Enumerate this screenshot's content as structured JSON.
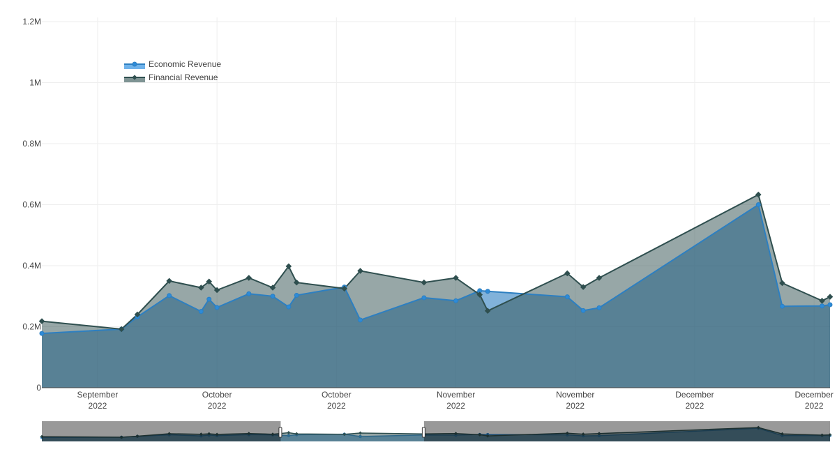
{
  "chart_data": {
    "type": "area",
    "title": "",
    "xlabel": "",
    "ylabel": "",
    "ylim": [
      0,
      1200000
    ],
    "y_ticks": [
      {
        "value": 0,
        "label": "0"
      },
      {
        "value": 200000,
        "label": "0.2M"
      },
      {
        "value": 400000,
        "label": "0.4M"
      },
      {
        "value": 600000,
        "label": "0.6M"
      },
      {
        "value": 800000,
        "label": "0.8M"
      },
      {
        "value": 1000000,
        "label": "1M"
      },
      {
        "value": 1200000,
        "label": "1.2M"
      }
    ],
    "xlim": [
      "2022-09-21",
      "2022-12-29"
    ],
    "x_ticks": [
      {
        "value": "2022-09-28",
        "month": "September",
        "year": "2022"
      },
      {
        "value": "2022-10-13",
        "month": "October",
        "year": "2022"
      },
      {
        "value": "2022-10-28",
        "month": "October",
        "year": "2022"
      },
      {
        "value": "2022-11-12",
        "month": "November",
        "year": "2022"
      },
      {
        "value": "2022-11-27",
        "month": "November",
        "year": "2022"
      },
      {
        "value": "2022-12-12",
        "month": "December",
        "year": "2022"
      },
      {
        "value": "2022-12-27",
        "month": "December",
        "year": "2022"
      }
    ],
    "grid": true,
    "legend_position": "top-left",
    "series": [
      {
        "name": "Economic Revenue",
        "color": "#2d7fc1",
        "marker": "circle",
        "points": [
          {
            "x": "2022-09-21",
            "y": 178000
          },
          {
            "x": "2022-10-01",
            "y": 192000
          },
          {
            "x": "2022-10-03",
            "y": 232000
          },
          {
            "x": "2022-10-07",
            "y": 302000
          },
          {
            "x": "2022-10-11",
            "y": 250000
          },
          {
            "x": "2022-10-12",
            "y": 290000
          },
          {
            "x": "2022-10-13",
            "y": 263000
          },
          {
            "x": "2022-10-17",
            "y": 308000
          },
          {
            "x": "2022-10-20",
            "y": 300000
          },
          {
            "x": "2022-10-22",
            "y": 265000
          },
          {
            "x": "2022-10-23",
            "y": 303000
          },
          {
            "x": "2022-10-29",
            "y": 330000
          },
          {
            "x": "2022-10-31",
            "y": 222000
          },
          {
            "x": "2022-11-08",
            "y": 295000
          },
          {
            "x": "2022-11-12",
            "y": 285000
          },
          {
            "x": "2022-11-15",
            "y": 318000
          },
          {
            "x": "2022-11-16",
            "y": 316000
          },
          {
            "x": "2022-11-26",
            "y": 298000
          },
          {
            "x": "2022-11-28",
            "y": 253000
          },
          {
            "x": "2022-11-30",
            "y": 262000
          },
          {
            "x": "2022-12-20",
            "y": 600000
          },
          {
            "x": "2022-12-23",
            "y": 267000
          },
          {
            "x": "2022-12-28",
            "y": 268000
          },
          {
            "x": "2022-12-29",
            "y": 272000
          }
        ]
      },
      {
        "name": "Financial Revenue",
        "color": "#2f4f4f",
        "marker": "diamond",
        "points": [
          {
            "x": "2022-09-21",
            "y": 218000
          },
          {
            "x": "2022-10-01",
            "y": 192000
          },
          {
            "x": "2022-10-03",
            "y": 240000
          },
          {
            "x": "2022-10-07",
            "y": 350000
          },
          {
            "x": "2022-10-11",
            "y": 328000
          },
          {
            "x": "2022-10-12",
            "y": 348000
          },
          {
            "x": "2022-10-13",
            "y": 320000
          },
          {
            "x": "2022-10-17",
            "y": 360000
          },
          {
            "x": "2022-10-20",
            "y": 328000
          },
          {
            "x": "2022-10-22",
            "y": 398000
          },
          {
            "x": "2022-10-23",
            "y": 345000
          },
          {
            "x": "2022-10-29",
            "y": 325000
          },
          {
            "x": "2022-10-31",
            "y": 383000
          },
          {
            "x": "2022-11-08",
            "y": 345000
          },
          {
            "x": "2022-11-12",
            "y": 360000
          },
          {
            "x": "2022-11-15",
            "y": 305000
          },
          {
            "x": "2022-11-16",
            "y": 252000
          },
          {
            "x": "2022-11-26",
            "y": 375000
          },
          {
            "x": "2022-11-28",
            "y": 330000
          },
          {
            "x": "2022-11-30",
            "y": 360000
          },
          {
            "x": "2022-12-20",
            "y": 633000
          },
          {
            "x": "2022-12-23",
            "y": 343000
          },
          {
            "x": "2022-12-28",
            "y": 285000
          },
          {
            "x": "2022-12-29",
            "y": 298000
          }
        ]
      }
    ],
    "range_selector": {
      "selected_start": "2022-10-21",
      "selected_end": "2022-11-08"
    }
  }
}
